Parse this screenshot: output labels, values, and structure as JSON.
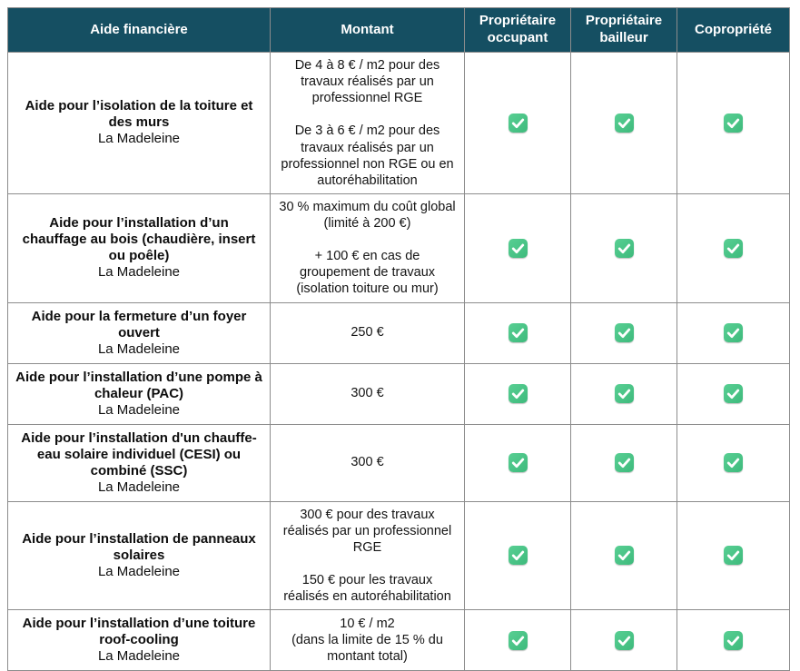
{
  "colors": {
    "header_bg": "#154f62",
    "border": "#8c8c8c",
    "check_green": "#42bf81",
    "header_text": "#ffffff"
  },
  "table": {
    "columns": [
      {
        "id": "aide",
        "label": "Aide financière"
      },
      {
        "id": "montant",
        "label": "Montant"
      },
      {
        "id": "occupant",
        "label": "Propriétaire occupant"
      },
      {
        "id": "bailleur",
        "label": "Propriétaire bailleur"
      },
      {
        "id": "copropriete",
        "label": "Copropriété"
      }
    ],
    "check_icon": "green-check-icon",
    "rows": [
      {
        "title": "Aide pour l’isolation de la toiture et des murs",
        "location": "La Madeleine",
        "montant": [
          "De 4 à 8 € / m2 pour des travaux réalisés par un professionnel RGE",
          "De 3 à 6 € / m2 pour des travaux réalisés par un professionnel non RGE ou en autoréhabilitation"
        ],
        "proprietaire_occupant": true,
        "proprietaire_bailleur": true,
        "copropriete": true
      },
      {
        "title": "Aide pour l’installation d’un chauffage au bois (chaudière, insert ou poêle)",
        "location": "La Madeleine",
        "montant": [
          "30 % maximum du coût global (limité à 200 €)",
          "+ 100 € en cas de groupement de travaux (isolation toiture ou mur)"
        ],
        "proprietaire_occupant": true,
        "proprietaire_bailleur": true,
        "copropriete": true
      },
      {
        "title": "Aide pour la fermeture d’un foyer ouvert",
        "location": "La Madeleine",
        "montant": [
          "250 €"
        ],
        "proprietaire_occupant": true,
        "proprietaire_bailleur": true,
        "copropriete": true
      },
      {
        "title": "Aide pour l’installation d’une pompe à chaleur (PAC)",
        "location": "La Madeleine",
        "montant": [
          "300 €"
        ],
        "proprietaire_occupant": true,
        "proprietaire_bailleur": true,
        "copropriete": true
      },
      {
        "title": "Aide pour l’installation d'un chauffe-eau solaire individuel (CESI) ou combiné (SSC)",
        "location": "La Madeleine",
        "montant": [
          "300 €"
        ],
        "proprietaire_occupant": true,
        "proprietaire_bailleur": true,
        "copropriete": true
      },
      {
        "title": "Aide pour l’installation de panneaux solaires",
        "location": "La Madeleine",
        "montant": [
          "300 € pour des travaux réalisés par un professionnel RGE",
          "150 € pour les travaux réalisés en autoréhabilitation"
        ],
        "proprietaire_occupant": true,
        "proprietaire_bailleur": true,
        "copropriete": true
      },
      {
        "title": "Aide pour l’installation d’une toiture roof-cooling",
        "location": "La Madeleine",
        "montant": [
          "10 € / m2\n(dans la limite de 15 % du montant total)"
        ],
        "proprietaire_occupant": true,
        "proprietaire_bailleur": true,
        "copropriete": true
      }
    ]
  }
}
